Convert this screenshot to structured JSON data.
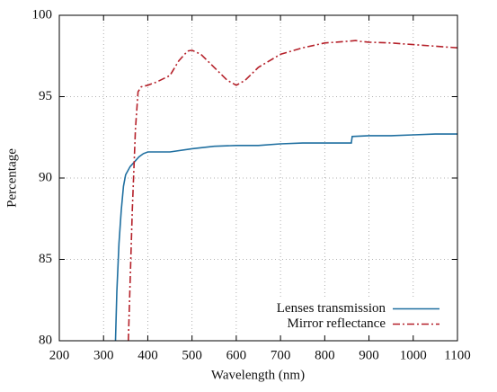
{
  "chart_data": {
    "type": "line",
    "x_label": "Wavelength (nm)",
    "y_label": "Percentage",
    "xlim": [
      200,
      1100
    ],
    "xticks": [
      200,
      300,
      400,
      500,
      600,
      700,
      800,
      900,
      1000,
      1100
    ],
    "ylim": [
      80,
      100
    ],
    "yticks": [
      80,
      85,
      90,
      95,
      100
    ],
    "grid": true,
    "legend": "bottom-right",
    "series": [
      {
        "name": "Lenses transmission",
        "color": "#1f6fa0",
        "dash": "solid",
        "x": [
          327,
          330,
          335,
          340,
          345,
          350,
          360,
          370,
          380,
          390,
          400,
          450,
          500,
          550,
          600,
          650,
          700,
          750,
          800,
          860,
          862,
          900,
          950,
          1000,
          1050,
          1100
        ],
        "values": [
          80,
          83,
          86,
          88,
          89.5,
          90.2,
          90.7,
          91.0,
          91.3,
          91.5,
          91.6,
          91.6,
          91.8,
          91.95,
          92.0,
          92.0,
          92.1,
          92.15,
          92.15,
          92.15,
          92.55,
          92.6,
          92.6,
          92.65,
          92.7,
          92.7
        ]
      },
      {
        "name": "Mirror reflectance",
        "color": "#b5212a",
        "dash": "dashdot",
        "x": [
          356,
          365,
          372,
          378,
          385,
          400,
          420,
          450,
          470,
          490,
          500,
          520,
          550,
          580,
          600,
          620,
          650,
          700,
          750,
          800,
          850,
          870,
          880,
          900,
          950,
          1000,
          1050,
          1100
        ],
        "values": [
          80,
          88,
          93,
          95.3,
          95.6,
          95.7,
          95.9,
          96.3,
          97.2,
          97.8,
          97.85,
          97.6,
          96.8,
          96.0,
          95.7,
          96.0,
          96.8,
          97.6,
          98.0,
          98.3,
          98.4,
          98.45,
          98.4,
          98.35,
          98.3,
          98.2,
          98.1,
          98.0
        ]
      }
    ]
  }
}
